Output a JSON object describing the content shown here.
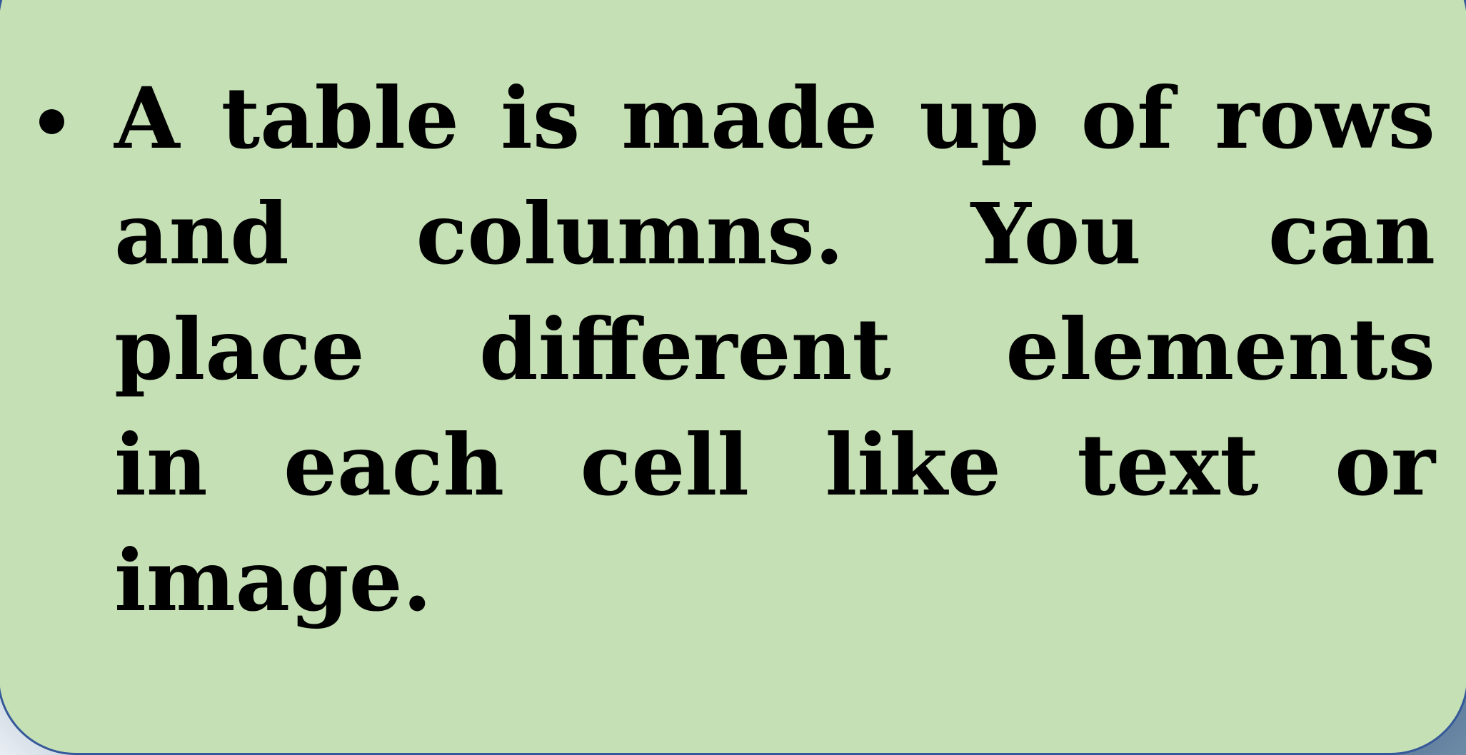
{
  "slide": {
    "background_color": "#c5e0b4",
    "border_color": "#35589a",
    "bullet_text_lines": [
      [
        "A",
        "table",
        "is",
        "made",
        "up",
        "of",
        "rows"
      ],
      [
        "and",
        "columns.",
        "You",
        "can"
      ],
      [
        "place",
        "different",
        "elements"
      ],
      [
        "in",
        "each",
        "cell",
        "like",
        "text",
        "or"
      ],
      [
        "image."
      ]
    ]
  }
}
